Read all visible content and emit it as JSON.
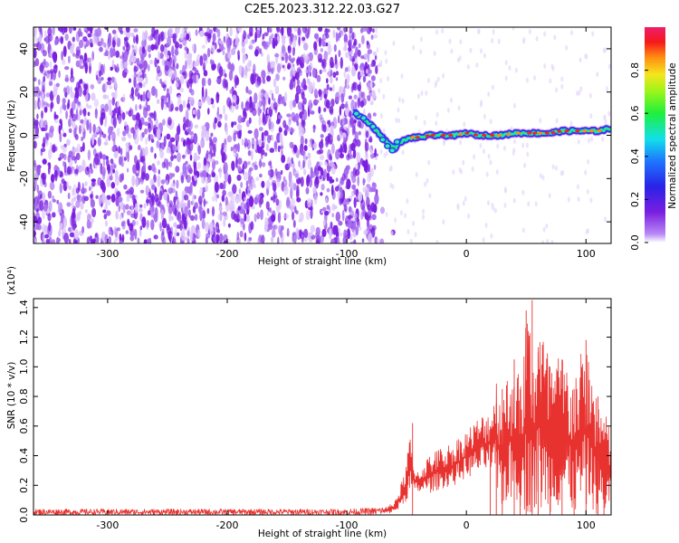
{
  "title": "C2E5.2023.312.22.03.G27",
  "colors": {
    "snr_line": "#e8322f",
    "spectrogram_noise": "#7a1fe0"
  },
  "chart_data": [
    {
      "type": "heatmap",
      "title": "C2E5.2023.312.22.03.G27",
      "xlabel": "Height of straight line (km)",
      "ylabel": "Frequency (Hz)",
      "xlim": [
        -362,
        121
      ],
      "ylim": [
        -50,
        50
      ],
      "x_ticks": [
        -300,
        -200,
        -100,
        0,
        100
      ],
      "y_ticks": [
        -40,
        -20,
        0,
        20,
        40
      ],
      "colorbar": {
        "label": "Normalized spectral amplitude",
        "range": [
          0.0,
          1.0
        ],
        "ticks": [
          0.0,
          0.2,
          0.4,
          0.6,
          0.8
        ],
        "colormap": "rainbow (purple → blue → cyan → green → yellow → red → magenta)"
      },
      "signal_trace": {
        "x": [
          -95,
          -90,
          -85,
          -80,
          -75,
          -70,
          -65,
          -60,
          -55,
          -50,
          -45,
          -40,
          -30,
          -20,
          -10,
          0,
          10,
          20,
          30,
          40,
          50,
          60,
          70,
          80,
          90,
          100,
          110,
          120
        ],
        "y": [
          11,
          9,
          7,
          5,
          2,
          -1,
          -4,
          -6,
          -3,
          -2,
          -1,
          -1,
          0,
          0,
          0,
          1,
          0,
          0,
          0,
          1,
          1,
          1,
          1,
          2,
          2,
          2,
          2,
          3
        ]
      }
    },
    {
      "type": "line",
      "xlabel": "Height of straight line (km)",
      "ylabel": "SNR (10 * v/v)",
      "y_multiplier": "(x10⁴)",
      "xlim": [
        -362,
        121
      ],
      "ylim": [
        0.0,
        1.46
      ],
      "x_ticks": [
        -300,
        -200,
        -100,
        0,
        100
      ],
      "y_ticks": [
        0.0,
        0.2,
        0.4,
        0.6,
        0.8,
        1.0,
        1.2,
        1.4
      ],
      "series": [
        {
          "x": [
            -362,
            -300,
            -200,
            -100,
            -80,
            -60,
            -55,
            -50,
            -47,
            -45,
            -43,
            -40,
            -35,
            -30,
            -20,
            -10,
            0,
            10,
            20,
            25,
            30,
            40,
            45,
            50,
            55,
            60,
            70,
            80,
            90,
            100,
            110,
            115,
            120
          ],
          "y": [
            0.02,
            0.02,
            0.02,
            0.02,
            0.03,
            0.05,
            0.12,
            0.22,
            0.45,
            0.62,
            0.3,
            0.25,
            0.3,
            0.28,
            0.3,
            0.36,
            0.45,
            0.5,
            0.6,
            0.75,
            0.85,
            1.05,
            0.85,
            1.38,
            1.45,
            1.1,
            1.0,
            1.05,
            0.85,
            1.18,
            0.8,
            0.62,
            0.55
          ],
          "envelope": {
            "x": [
              -362,
              -100,
              -75,
              -65,
              -60,
              -55,
              -50,
              -47,
              -45,
              -40,
              -30,
              -20,
              -10,
              0,
              10,
              20,
              25,
              30,
              40,
              45,
              50,
              52,
              55,
              60,
              70,
              80,
              90,
              100,
              110,
              115,
              120
            ],
            "low": [
              0.0,
              0.0,
              0.0,
              0.01,
              0.02,
              0.04,
              0.1,
              0.12,
              0.15,
              0.15,
              0.15,
              0.18,
              0.2,
              0.25,
              0.28,
              0.3,
              0.15,
              0.05,
              0.1,
              0.05,
              0.0,
              0.0,
              0.02,
              0.0,
              0.02,
              0.05,
              0.0,
              0.05,
              0.0,
              0.0,
              0.02
            ],
            "high": [
              0.04,
              0.04,
              0.05,
              0.06,
              0.1,
              0.2,
              0.35,
              0.62,
              0.35,
              0.3,
              0.42,
              0.46,
              0.5,
              0.58,
              0.66,
              0.72,
              0.95,
              0.85,
              1.1,
              0.9,
              1.38,
              1.46,
              1.1,
              1.42,
              1.05,
              1.1,
              0.98,
              1.18,
              0.85,
              0.7,
              0.62
            ]
          }
        }
      ]
    }
  ]
}
